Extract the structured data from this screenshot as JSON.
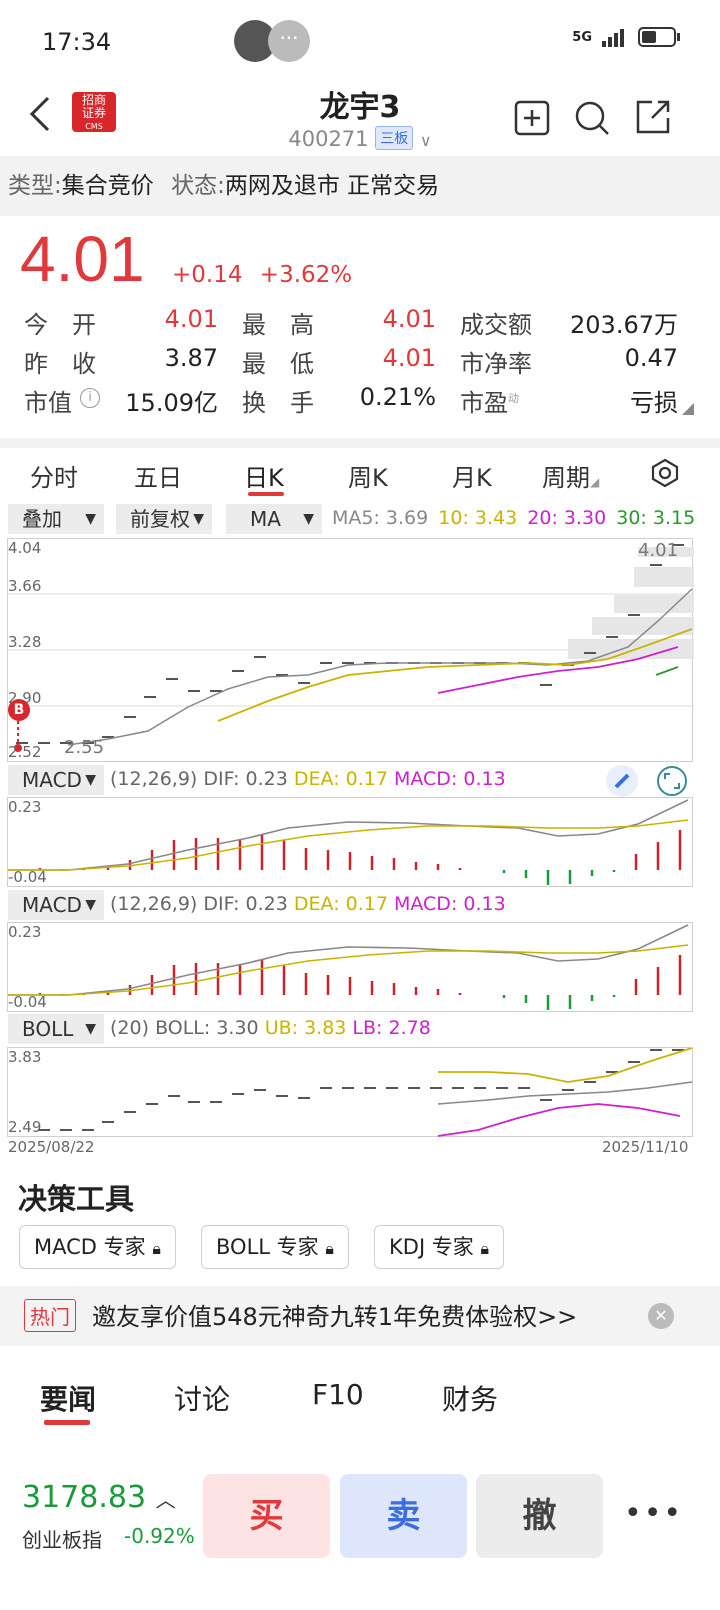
{
  "status_bar": {
    "time": "17:34",
    "network": "5G"
  },
  "header": {
    "title": "龙宇3",
    "code": "400271",
    "board_tag": "三板",
    "logo_text": [
      "招商",
      "证券",
      "CMS"
    ]
  },
  "type_bar": {
    "type_label": "类型:",
    "type_value": "集合竞价",
    "state_label": "状态:",
    "state_value": "两网及退市 正常交易"
  },
  "quote": {
    "price": "4.01",
    "change": "+0.14",
    "change_pct": "+3.62%",
    "rows": [
      {
        "l1": "今　开",
        "v1": "4.01",
        "l2": "最　高",
        "v2": "4.01",
        "l3": "成交额",
        "v3": "203.67万"
      },
      {
        "l1": "昨　收",
        "v1": "3.87",
        "l2": "最　低",
        "v2": "4.01",
        "l3": "市净率",
        "v3": "0.47"
      },
      {
        "l1": "市值",
        "v1": "15.09亿",
        "l2": "换　手",
        "v2": "0.21%",
        "l3": "市盈",
        "l3_sup": "动",
        "v3": "亏损"
      }
    ]
  },
  "chart_tabs": [
    "分时",
    "五日",
    "日K",
    "周K",
    "月K",
    "周期"
  ],
  "toolbar": {
    "overlay": "叠加",
    "adjust": "前复权",
    "indicator": "MA"
  },
  "ma_legend": {
    "ma5": "MA5: 3.69",
    "ma10": "10: 3.43",
    "ma20": "20: 3.30",
    "ma30": "30: 3.15"
  },
  "kline": {
    "y_labels": [
      "4.04",
      "3.66",
      "3.28",
      "2.90",
      "2.52"
    ],
    "max_label": "4.01",
    "min_label": "2.55",
    "buy_marker": "B"
  },
  "macd_legend": {
    "name": "MACD",
    "params": "(12,26,9)",
    "dif": "DIF: 0.23",
    "dea": "DEA: 0.17",
    "macd": "MACD: 0.13",
    "y_top": "0.23",
    "y_bot": "-0.04"
  },
  "boll_legend": {
    "name": "BOLL",
    "params": "(20)",
    "boll": "BOLL: 3.30",
    "ub": "UB: 3.83",
    "lb": "LB: 2.78",
    "y_top": "3.83",
    "y_bot": "2.49"
  },
  "date_range": {
    "start": "2025/08/22",
    "end": "2025/11/10"
  },
  "tools": {
    "title": "决策工具",
    "buttons": [
      "MACD 专家",
      "BOLL 专家",
      "KDJ 专家"
    ]
  },
  "promo": {
    "tag": "热门",
    "text": "邀友享价值548元神奇九转1年免费体验权>>"
  },
  "news_tabs": [
    "要闻",
    "讨论",
    "F10",
    "财务"
  ],
  "index": {
    "value": "3178.83",
    "name": "创业板指",
    "change": "-0.92%"
  },
  "trade": {
    "buy": "买",
    "sell": "卖",
    "cancel": "撤"
  },
  "colors": {
    "up": "#e0383b",
    "down": "#1a9a3a",
    "ma10": "#c8b400",
    "ma20": "#cc22cc",
    "ma30": "#2a9a2a",
    "dif": "#888888"
  }
}
